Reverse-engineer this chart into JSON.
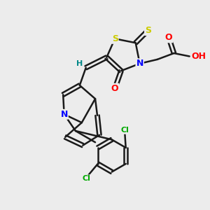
{
  "background_color": "#ececec",
  "bond_color": "#1a1a1a",
  "bond_width": 1.8,
  "atom_colors": {
    "S": "#cccc00",
    "N": "#0000ff",
    "O": "#ff0000",
    "Cl": "#00aa00",
    "C": "#1a1a1a",
    "H": "#008888"
  }
}
